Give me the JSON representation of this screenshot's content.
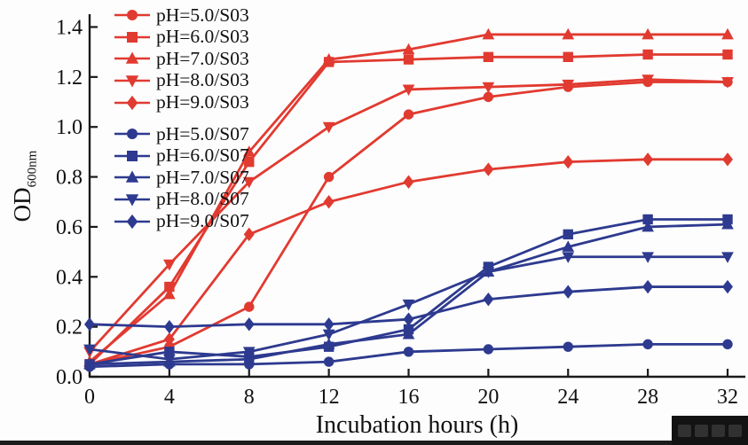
{
  "chart_data": {
    "type": "line",
    "title": "",
    "xlabel": "Incubation hours (h)",
    "ylabel": "OD",
    "ylabel_sub": "600nm",
    "x": [
      0,
      4,
      8,
      12,
      16,
      20,
      24,
      28,
      32
    ],
    "xlim": [
      0,
      32
    ],
    "ylim": [
      0.0,
      1.4
    ],
    "x_ticks": [
      "0",
      "4",
      "8",
      "12",
      "16",
      "20",
      "24",
      "28",
      "32"
    ],
    "y_ticks": [
      "0.0",
      "0.2",
      "0.4",
      "0.6",
      "0.8",
      "1.0",
      "1.2",
      "1.4"
    ],
    "grid": false,
    "legend_position": "top-left",
    "axis_color": "#1a1a1a",
    "background_color": "#fdfdfd",
    "series": [
      {
        "name": "pH=5.0/S03",
        "color": "#e13a30",
        "marker": "circle",
        "values": [
          0.05,
          0.12,
          0.28,
          0.8,
          1.05,
          1.12,
          1.16,
          1.18,
          1.18
        ]
      },
      {
        "name": "pH=6.0/S03",
        "color": "#e13a30",
        "marker": "square",
        "values": [
          0.05,
          0.36,
          0.86,
          1.26,
          1.27,
          1.28,
          1.28,
          1.29,
          1.29
        ]
      },
      {
        "name": "pH=7.0/S03",
        "color": "#e13a30",
        "marker": "triangle-up",
        "values": [
          0.06,
          0.33,
          0.9,
          1.27,
          1.31,
          1.37,
          1.37,
          1.37,
          1.37
        ]
      },
      {
        "name": "pH=8.0/S03",
        "color": "#e13a30",
        "marker": "triangle-down",
        "values": [
          0.1,
          0.45,
          0.78,
          1.0,
          1.15,
          1.16,
          1.17,
          1.19,
          1.18
        ]
      },
      {
        "name": "pH=9.0/S03",
        "color": "#e13a30",
        "marker": "diamond",
        "values": [
          0.05,
          0.15,
          0.57,
          0.7,
          0.78,
          0.83,
          0.86,
          0.87,
          0.87
        ]
      },
      {
        "name": "pH=5.0/S07",
        "color": "#2d3a8f",
        "marker": "circle",
        "values": [
          0.04,
          0.05,
          0.05,
          0.06,
          0.1,
          0.11,
          0.12,
          0.13,
          0.13
        ]
      },
      {
        "name": "pH=6.0/S07",
        "color": "#2d3a8f",
        "marker": "square",
        "values": [
          0.05,
          0.1,
          0.08,
          0.12,
          0.19,
          0.44,
          0.57,
          0.63,
          0.63
        ]
      },
      {
        "name": "pH=7.0/S07",
        "color": "#2d3a8f",
        "marker": "triangle-up",
        "values": [
          0.05,
          0.06,
          0.07,
          0.13,
          0.17,
          0.42,
          0.52,
          0.6,
          0.61
        ]
      },
      {
        "name": "pH=8.0/S07",
        "color": "#2d3a8f",
        "marker": "triangle-down",
        "values": [
          0.11,
          0.07,
          0.1,
          0.17,
          0.29,
          0.42,
          0.48,
          0.48,
          0.48
        ]
      },
      {
        "name": "pH=9.0/S07",
        "color": "#2d3a8f",
        "marker": "diamond",
        "values": [
          0.21,
          0.2,
          0.21,
          0.21,
          0.23,
          0.31,
          0.34,
          0.36,
          0.36
        ]
      }
    ]
  }
}
